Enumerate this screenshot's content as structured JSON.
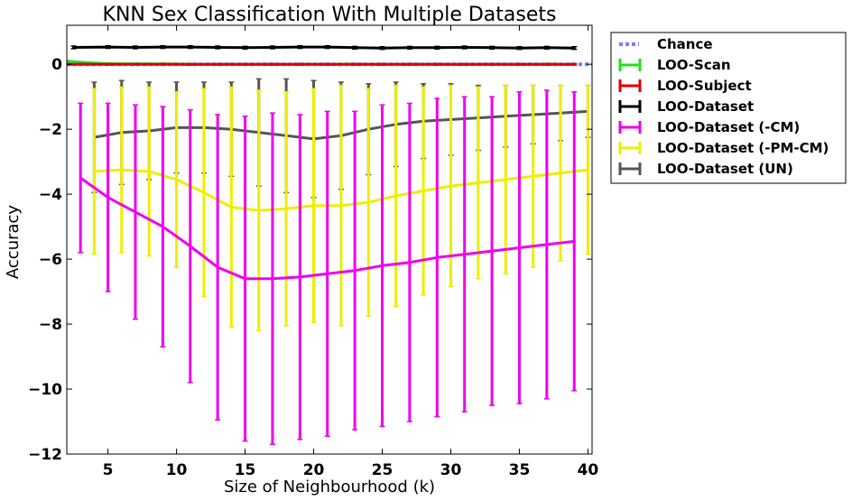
{
  "chart_data": {
    "type": "line",
    "title": "KNN Sex Classification With Multiple Datasets",
    "xlabel": "Size of Neighbourhood (k)",
    "ylabel": "Accuracy",
    "xlim": [
      2,
      40.3
    ],
    "ylim": [
      -12,
      1.2
    ],
    "xticks": [
      5,
      10,
      15,
      20,
      25,
      30,
      35,
      40
    ],
    "yticks": [
      0,
      -2,
      -4,
      -6,
      -8,
      -10,
      -12
    ],
    "xtick_labels": [
      "5",
      "10",
      "15",
      "20",
      "25",
      "30",
      "35",
      "40"
    ],
    "ytick_labels": [
      "0",
      "−2",
      "−4",
      "−6",
      "−8",
      "−10",
      "−12"
    ],
    "legend_position": "outside-right",
    "series": [
      {
        "name": "Chance",
        "color": "#7b7bff",
        "style": "dotted",
        "x": [
          2,
          40.3
        ],
        "y": [
          0,
          0
        ]
      },
      {
        "name": "LOO-Scan",
        "color": "#22dd22",
        "style": "solid",
        "x": [
          2,
          3,
          5,
          7,
          9,
          11,
          13,
          15,
          17,
          19,
          21,
          23,
          25,
          27,
          29,
          31,
          33,
          35,
          37,
          39
        ],
        "y": [
          0.1,
          0.06,
          0.02,
          0.01,
          0.01,
          0,
          0,
          0,
          0,
          0,
          0,
          0,
          0,
          0,
          0,
          0,
          0,
          0,
          0,
          0
        ],
        "err": [
          0.02,
          0.02,
          0.02,
          0.02,
          0.02,
          0.02,
          0.02,
          0.02,
          0.02,
          0.02,
          0.02,
          0.02,
          0.02,
          0.02,
          0.02,
          0.02,
          0.02,
          0.02,
          0.02,
          0.02
        ]
      },
      {
        "name": "LOO-Subject",
        "color": "#dd0000",
        "style": "solid",
        "x": [
          2,
          3,
          5,
          7,
          9,
          11,
          13,
          15,
          17,
          19,
          21,
          23,
          25,
          27,
          29,
          31,
          33,
          35,
          37,
          39
        ],
        "y": [
          0,
          0,
          0,
          0,
          0,
          0,
          0,
          0,
          0,
          0,
          0,
          0,
          0,
          0,
          0,
          0,
          0,
          0,
          0,
          0
        ],
        "err": [
          0.02,
          0.02,
          0.02,
          0.02,
          0.02,
          0.02,
          0.02,
          0.02,
          0.02,
          0.02,
          0.02,
          0.02,
          0.02,
          0.02,
          0.02,
          0.02,
          0.02,
          0.02,
          0.02,
          0.02
        ]
      },
      {
        "name": "LOO-Dataset",
        "color": "#000000",
        "style": "solid",
        "x": [
          2.5,
          5,
          7,
          9,
          11,
          13,
          15,
          17,
          19,
          21,
          23,
          25,
          27,
          29,
          31,
          33,
          35,
          37,
          39
        ],
        "y": [
          0.52,
          0.53,
          0.52,
          0.53,
          0.53,
          0.52,
          0.51,
          0.52,
          0.53,
          0.53,
          0.51,
          0.5,
          0.51,
          0.51,
          0.52,
          0.51,
          0.5,
          0.51,
          0.5
        ],
        "err": [
          0.04,
          0.04,
          0.04,
          0.04,
          0.04,
          0.04,
          0.04,
          0.04,
          0.04,
          0.04,
          0.04,
          0.04,
          0.04,
          0.04,
          0.04,
          0.04,
          0.04,
          0.04,
          0.04
        ]
      },
      {
        "name": "LOO-Dataset (-CM)",
        "color": "#ee00ee",
        "style": "solid",
        "x": [
          3,
          5,
          7,
          9,
          11,
          13,
          15,
          17,
          19,
          21,
          23,
          25,
          27,
          29,
          31,
          33,
          35,
          37,
          39
        ],
        "y": [
          -3.5,
          -4.1,
          -4.55,
          -5.0,
          -5.6,
          -6.25,
          -6.6,
          -6.6,
          -6.55,
          -6.45,
          -6.35,
          -6.2,
          -6.1,
          -5.95,
          -5.85,
          -5.75,
          -5.65,
          -5.55,
          -5.45
        ],
        "err": [
          2.3,
          2.9,
          3.3,
          3.7,
          4.2,
          4.7,
          5.0,
          5.1,
          5.0,
          5.0,
          4.9,
          4.95,
          4.9,
          4.9,
          4.85,
          4.75,
          4.8,
          4.75,
          4.6
        ]
      },
      {
        "name": "LOO-Dataset (-PM-CM)",
        "color": "#eeee00",
        "style": "solid",
        "x": [
          4,
          6,
          8,
          10,
          12,
          14,
          16,
          18,
          20,
          22,
          24,
          26,
          28,
          30,
          32,
          34,
          36,
          38,
          40
        ],
        "y": [
          -3.3,
          -3.25,
          -3.3,
          -3.55,
          -3.95,
          -4.4,
          -4.5,
          -4.45,
          -4.35,
          -4.35,
          -4.25,
          -4.05,
          -3.9,
          -3.75,
          -3.65,
          -3.55,
          -3.45,
          -3.35,
          -3.25
        ],
        "err": [
          2.55,
          2.55,
          2.6,
          2.7,
          3.2,
          3.7,
          3.7,
          3.6,
          3.6,
          3.7,
          3.5,
          3.4,
          3.2,
          3.1,
          2.95,
          2.9,
          2.8,
          2.7,
          2.6
        ]
      },
      {
        "name": "LOO-Dataset (UN)",
        "color": "#555555",
        "style": "solid",
        "x": [
          4,
          6,
          8,
          10,
          12,
          14,
          16,
          18,
          20,
          22,
          24,
          26,
          28,
          30,
          32,
          34,
          36,
          38,
          40
        ],
        "y": [
          -2.25,
          -2.1,
          -2.05,
          -1.95,
          -1.95,
          -2.0,
          -2.1,
          -2.2,
          -2.3,
          -2.2,
          -2.0,
          -1.85,
          -1.75,
          -1.7,
          -1.65,
          -1.6,
          -1.55,
          -1.5,
          -1.45
        ],
        "err": [
          1.7,
          1.6,
          1.5,
          1.4,
          1.4,
          1.45,
          1.65,
          1.75,
          1.8,
          1.65,
          1.4,
          1.3,
          1.15,
          1.1,
          1.0,
          0.95,
          0.9,
          0.85,
          0.8
        ]
      }
    ]
  }
}
